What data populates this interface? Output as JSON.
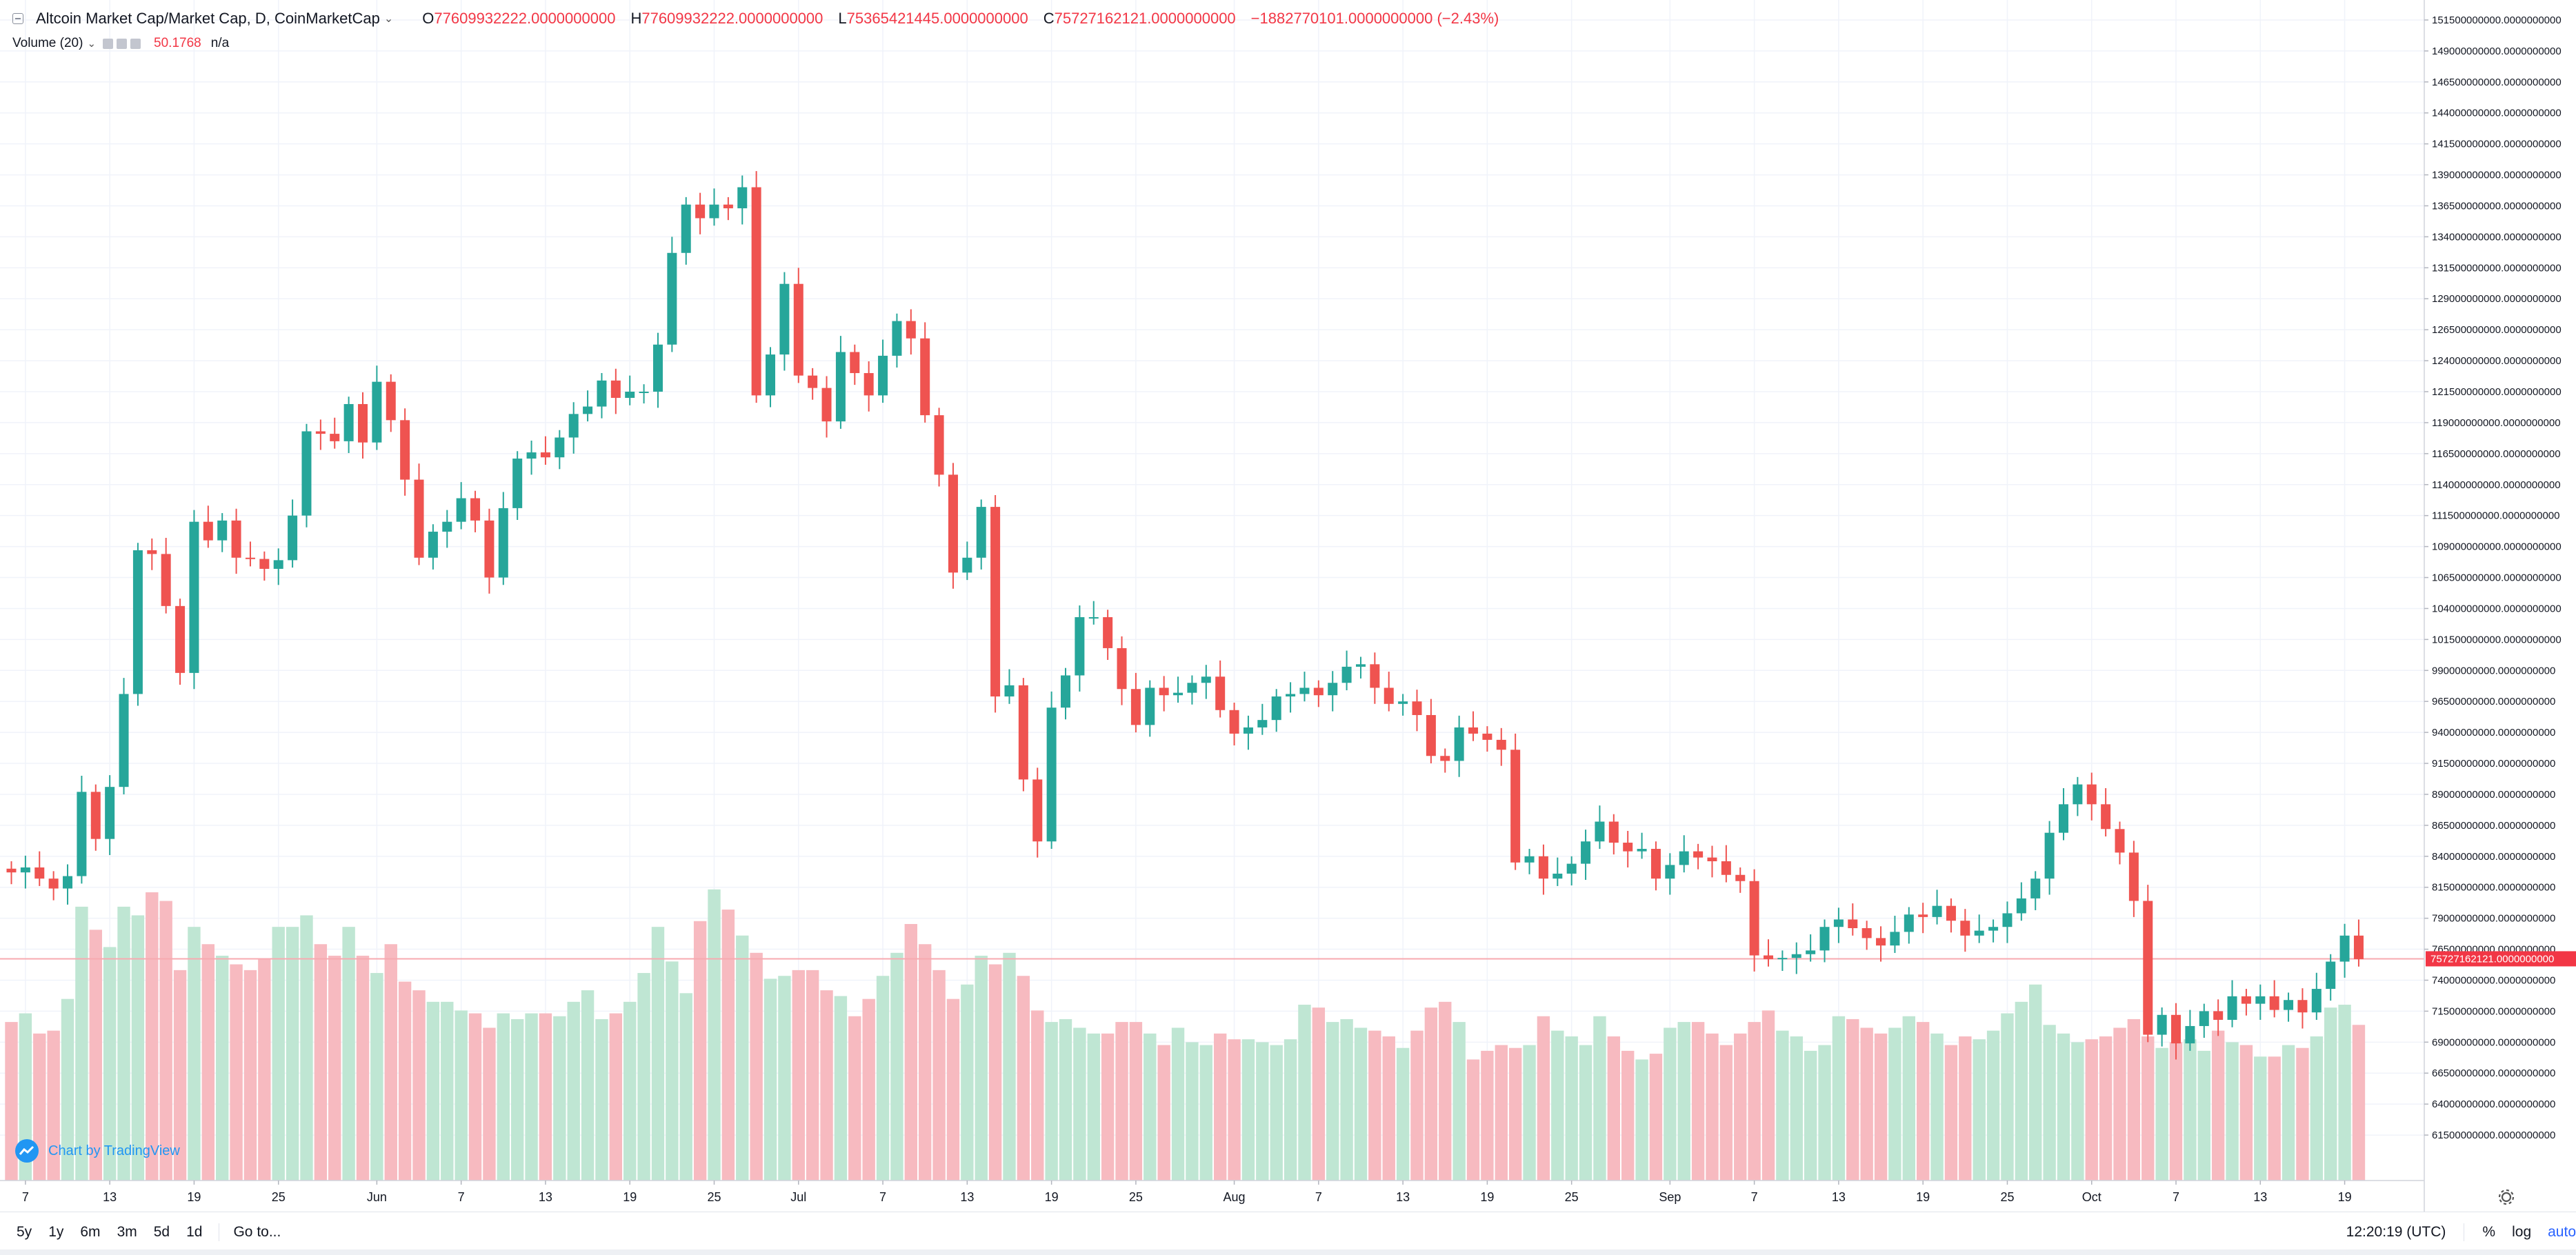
{
  "header": {
    "symbol": "Altcoin Market Cap/Market Cap, D, CoinMarketCap",
    "open_key": "O",
    "open": "77609932222.0000000000",
    "high_key": "H",
    "high": "77609932222.0000000000",
    "low_key": "L",
    "low": "75365421445.0000000000",
    "close_key": "C",
    "close": "75727162121.0000000000",
    "change": "−1882770101.0000000000 (−2.43%)",
    "volume_label": "Volume (20)",
    "volume_value": "50.1768",
    "volume_na": "n/a"
  },
  "watermark": "Chart by TradingView",
  "bottom": {
    "timeframes": [
      "5y",
      "1y",
      "6m",
      "3m",
      "5d",
      "1d"
    ],
    "goto": "Go to...",
    "time": "12:20:19 (UTC)",
    "pct": "%",
    "log": "log",
    "auto": "auto"
  },
  "colors": {
    "up": "#26a69a",
    "down": "#ef5350",
    "up_vol": "#bfe6d3",
    "down_vol": "#f7bac0",
    "last_price": "#f23645",
    "grid": "#f0f3fa"
  },
  "icons": [
    "collapse-icon",
    "chevron-down-icon",
    "eye-icon",
    "settings-icon",
    "close-icon",
    "tradingview-logo-icon",
    "gear-icon"
  ],
  "chart_data": {
    "type": "candlestick",
    "title": "Altcoin Market Cap/Market Cap, D, CoinMarketCap",
    "y_axis": {
      "position": "right",
      "range": [
        59000000000,
        152500000000
      ],
      "tick_step": 2500000000,
      "tick_decimals": 10
    },
    "last_price": {
      "value": 75727162121,
      "label": "75727162121.0000000000"
    },
    "x_axis_labels": [
      {
        "label": "7",
        "index": 1
      },
      {
        "label": "13",
        "index": 7
      },
      {
        "label": "19",
        "index": 13
      },
      {
        "label": "25",
        "index": 19
      },
      {
        "label": "Jun",
        "index": 26
      },
      {
        "label": "7",
        "index": 32
      },
      {
        "label": "13",
        "index": 38
      },
      {
        "label": "19",
        "index": 44
      },
      {
        "label": "25",
        "index": 50
      },
      {
        "label": "Jul",
        "index": 56
      },
      {
        "label": "7",
        "index": 62
      },
      {
        "label": "13",
        "index": 68
      },
      {
        "label": "19",
        "index": 74
      },
      {
        "label": "25",
        "index": 80
      },
      {
        "label": "Aug",
        "index": 87
      },
      {
        "label": "7",
        "index": 93
      },
      {
        "label": "13",
        "index": 99
      },
      {
        "label": "19",
        "index": 105
      },
      {
        "label": "25",
        "index": 111
      },
      {
        "label": "Sep",
        "index": 118
      },
      {
        "label": "7",
        "index": 124
      },
      {
        "label": "13",
        "index": 130
      },
      {
        "label": "19",
        "index": 136
      },
      {
        "label": "25",
        "index": 142
      },
      {
        "label": "Oct",
        "index": 148
      },
      {
        "label": "7",
        "index": 154
      },
      {
        "label": "13",
        "index": 160
      },
      {
        "label": "19",
        "index": 166
      }
    ],
    "closes": [
      82.7,
      83.1,
      82.2,
      81.4,
      82.4,
      89.2,
      85.4,
      89.6,
      97.1,
      108.7,
      108.4,
      104.2,
      98.8,
      111.0,
      109.5,
      111.1,
      108.1,
      108.0,
      107.2,
      107.9,
      111.5,
      118.3,
      118.1,
      117.5,
      120.5,
      117.4,
      122.3,
      119.2,
      114.4,
      108.1,
      110.2,
      111.0,
      112.9,
      111.1,
      106.5,
      112.1,
      116.1,
      116.6,
      116.2,
      117.8,
      119.7,
      120.3,
      122.4,
      121.0,
      121.5,
      121.5,
      125.3,
      132.7,
      136.6,
      135.5,
      136.6,
      136.3,
      138.0,
      121.2,
      124.5,
      130.2,
      122.8,
      121.8,
      119.1,
      124.7,
      123.0,
      121.2,
      124.4,
      127.2,
      125.8,
      119.6,
      114.8,
      106.9,
      108.1,
      112.2,
      96.9,
      97.8,
      90.2,
      85.2,
      96.0,
      98.6,
      103.3,
      103.3,
      100.8,
      97.5,
      94.6,
      97.6,
      97.0,
      97.2,
      98.0,
      98.5,
      95.8,
      93.9,
      94.4,
      95.0,
      96.9,
      97.1,
      97.6,
      97.0,
      98.0,
      99.3,
      99.5,
      97.6,
      96.3,
      96.5,
      95.4,
      92.1,
      91.7,
      94.4,
      93.9,
      93.4,
      92.6,
      83.5,
      84.0,
      82.2,
      82.6,
      83.4,
      85.2,
      86.8,
      85.1,
      84.4,
      84.6,
      82.2,
      83.3,
      84.4,
      83.9,
      83.6,
      82.5,
      82.0,
      76.0,
      75.7,
      75.8,
      76.1,
      76.4,
      78.3,
      78.9,
      78.2,
      77.4,
      76.8,
      77.9,
      79.3,
      79.1,
      80.0,
      78.8,
      77.6,
      78.0,
      78.3,
      79.4,
      80.6,
      82.2,
      85.9,
      88.2,
      89.8,
      88.2,
      86.2,
      84.3,
      80.4,
      69.6,
      71.2,
      68.9,
      70.3,
      71.5,
      70.8,
      72.7,
      72.1,
      72.7,
      71.6,
      72.4,
      71.4,
      73.3,
      75.5,
      77.6,
      75.7
    ],
    "opens": [
      83.0,
      82.7,
      83.1,
      82.2,
      81.4,
      82.4,
      89.2,
      85.4,
      89.6,
      97.1,
      108.7,
      108.4,
      104.2,
      98.8,
      111.0,
      109.5,
      111.1,
      108.1,
      108.0,
      107.2,
      107.9,
      111.5,
      118.3,
      118.1,
      117.5,
      120.5,
      117.4,
      122.3,
      119.2,
      114.4,
      108.1,
      110.2,
      111.0,
      112.9,
      111.1,
      106.5,
      112.1,
      116.1,
      116.6,
      116.2,
      117.8,
      119.7,
      120.3,
      122.4,
      121.0,
      121.5,
      121.5,
      125.3,
      132.7,
      136.6,
      135.5,
      136.6,
      136.3,
      138.0,
      121.2,
      124.5,
      130.2,
      122.8,
      121.8,
      119.1,
      124.7,
      123.0,
      121.2,
      124.4,
      127.2,
      125.8,
      119.6,
      114.8,
      106.9,
      108.1,
      112.2,
      96.9,
      97.8,
      90.2,
      85.2,
      96.0,
      98.6,
      103.3,
      103.3,
      100.8,
      97.5,
      94.6,
      97.6,
      97.0,
      97.2,
      98.0,
      98.5,
      95.8,
      93.9,
      94.4,
      95.0,
      96.9,
      97.1,
      97.6,
      97.0,
      98.0,
      99.3,
      99.5,
      97.6,
      96.3,
      96.5,
      95.4,
      92.1,
      91.7,
      94.4,
      93.9,
      93.4,
      92.6,
      83.5,
      84.0,
      82.2,
      82.6,
      83.4,
      85.2,
      86.8,
      85.1,
      84.4,
      84.6,
      82.2,
      83.3,
      84.4,
      83.9,
      83.6,
      82.5,
      82.0,
      76.0,
      75.7,
      75.8,
      76.1,
      76.4,
      78.3,
      78.9,
      78.2,
      77.4,
      76.8,
      77.9,
      79.3,
      79.1,
      80.0,
      78.8,
      77.6,
      78.0,
      78.3,
      79.4,
      80.6,
      82.2,
      85.9,
      88.2,
      89.8,
      88.2,
      86.2,
      84.3,
      80.4,
      69.6,
      71.2,
      68.9,
      70.3,
      71.5,
      70.8,
      72.7,
      72.1,
      72.7,
      71.6,
      72.4,
      71.4,
      73.3,
      75.5,
      77.6
    ],
    "volumes": [
      0.55,
      0.58,
      0.51,
      0.52,
      0.63,
      0.95,
      0.87,
      0.81,
      0.95,
      0.92,
      1.0,
      0.97,
      0.73,
      0.88,
      0.82,
      0.78,
      0.75,
      0.73,
      0.77,
      0.88,
      0.88,
      0.92,
      0.82,
      0.78,
      0.88,
      0.78,
      0.72,
      0.82,
      0.69,
      0.66,
      0.62,
      0.62,
      0.59,
      0.58,
      0.53,
      0.58,
      0.56,
      0.58,
      0.58,
      0.57,
      0.62,
      0.66,
      0.56,
      0.58,
      0.62,
      0.72,
      0.88,
      0.76,
      0.65,
      0.9,
      1.01,
      0.94,
      0.85,
      0.79,
      0.7,
      0.71,
      0.73,
      0.73,
      0.66,
      0.64,
      0.57,
      0.63,
      0.71,
      0.79,
      0.89,
      0.82,
      0.73,
      0.63,
      0.68,
      0.78,
      0.75,
      0.79,
      0.71,
      0.59,
      0.55,
      0.56,
      0.53,
      0.51,
      0.51,
      0.55,
      0.55,
      0.51,
      0.47,
      0.53,
      0.48,
      0.47,
      0.51,
      0.49,
      0.49,
      0.48,
      0.47,
      0.49,
      0.61,
      0.6,
      0.55,
      0.56,
      0.53,
      0.52,
      0.5,
      0.46,
      0.52,
      0.6,
      0.62,
      0.55,
      0.42,
      0.45,
      0.47,
      0.46,
      0.47,
      0.57,
      0.52,
      0.5,
      0.47,
      0.57,
      0.5,
      0.45,
      0.42,
      0.44,
      0.53,
      0.55,
      0.55,
      0.51,
      0.47,
      0.51,
      0.55,
      0.59,
      0.52,
      0.5,
      0.45,
      0.47,
      0.57,
      0.56,
      0.53,
      0.51,
      0.53,
      0.57,
      0.55,
      0.51,
      0.47,
      0.5,
      0.49,
      0.52,
      0.58,
      0.62,
      0.68,
      0.54,
      0.51,
      0.48,
      0.49,
      0.5,
      0.53,
      0.56,
      0.5,
      0.46,
      0.48,
      0.49,
      0.45,
      0.52,
      0.48,
      0.47,
      0.43,
      0.43,
      0.47,
      0.46,
      0.5,
      0.6,
      0.61,
      0.54
    ]
  }
}
